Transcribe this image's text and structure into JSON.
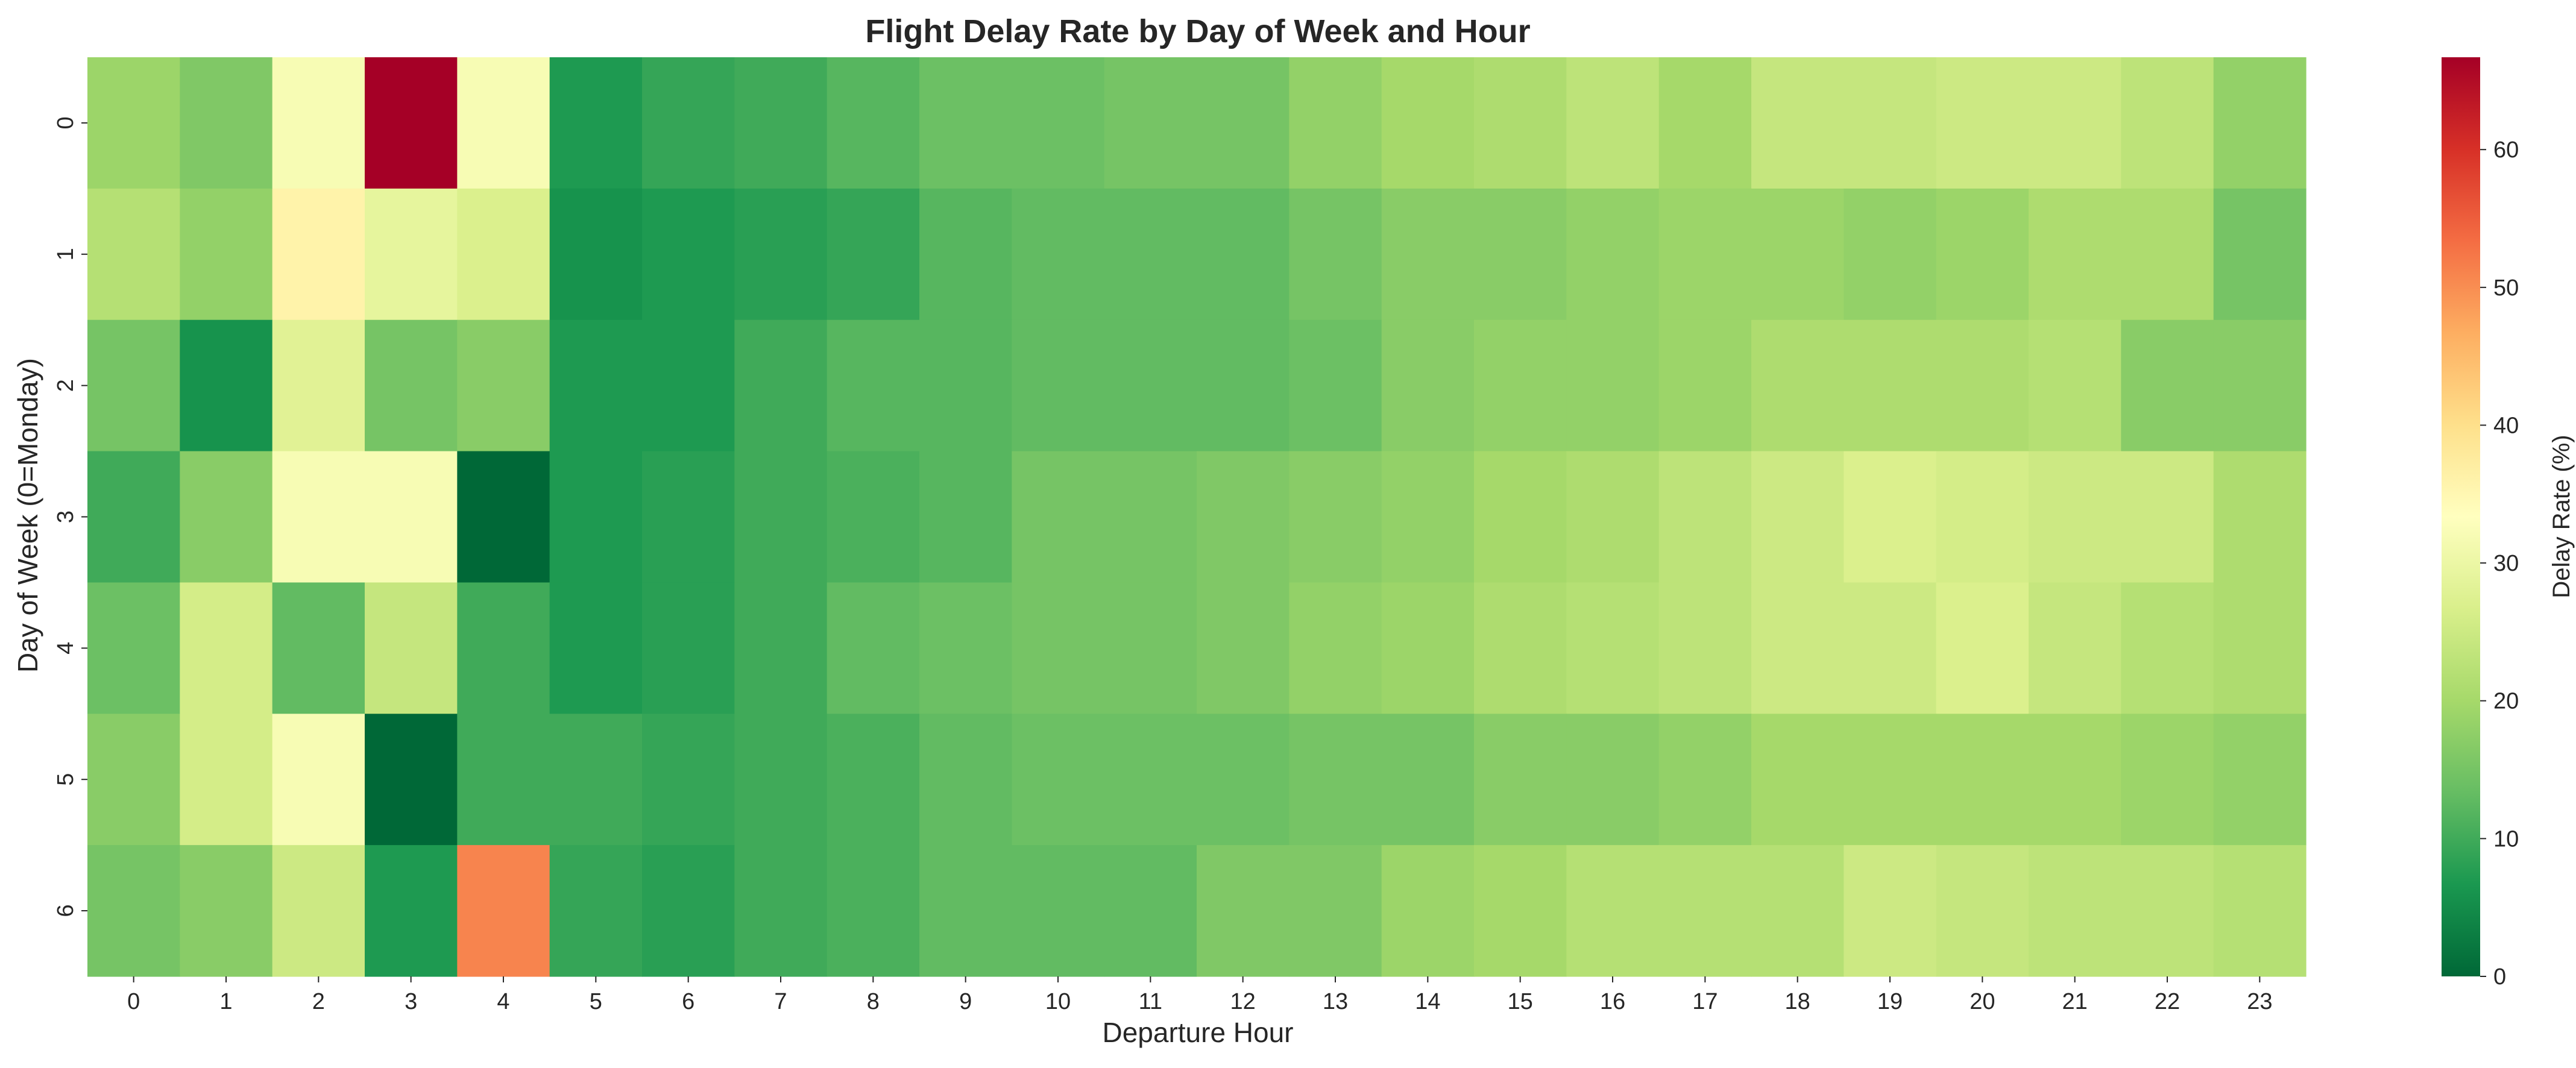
{
  "chart_data": {
    "type": "heatmap",
    "title": "Flight Delay Rate by Day of Week and Hour",
    "xlabel": "Departure Hour",
    "ylabel": "Day of Week (0=Monday)",
    "x_categories": [
      "0",
      "1",
      "2",
      "3",
      "4",
      "5",
      "6",
      "7",
      "8",
      "9",
      "10",
      "11",
      "12",
      "13",
      "14",
      "15",
      "16",
      "17",
      "18",
      "19",
      "20",
      "21",
      "22",
      "23"
    ],
    "y_categories": [
      "0",
      "1",
      "2",
      "3",
      "4",
      "5",
      "6"
    ],
    "values": [
      [
        19,
        16,
        32,
        67,
        32,
        7,
        9,
        10,
        12,
        14,
        14,
        15,
        15,
        18,
        20,
        21,
        23,
        20,
        24,
        24,
        25,
        25,
        23,
        18
      ],
      [
        22,
        18,
        36,
        29,
        27,
        6,
        7,
        8,
        9,
        12,
        13,
        13,
        13,
        15,
        17,
        17,
        18,
        19,
        19,
        18,
        19,
        21,
        21,
        15
      ],
      [
        15,
        6,
        28,
        15,
        17,
        7,
        7,
        10,
        12,
        12,
        13,
        13,
        13,
        14,
        17,
        18,
        18,
        19,
        21,
        21,
        21,
        22,
        17,
        17
      ],
      [
        10,
        17,
        32,
        32,
        0,
        7,
        8,
        10,
        11,
        12,
        15,
        15,
        16,
        17,
        18,
        20,
        21,
        23,
        25,
        27,
        26,
        25,
        25,
        21
      ],
      [
        14,
        26,
        13,
        24,
        10,
        7,
        8,
        10,
        13,
        14,
        15,
        15,
        16,
        18,
        19,
        21,
        22,
        23,
        25,
        25,
        27,
        24,
        22,
        21
      ],
      [
        17,
        26,
        32,
        0,
        10,
        10,
        9,
        10,
        11,
        13,
        14,
        14,
        14,
        15,
        15,
        17,
        17,
        18,
        20,
        20,
        20,
        20,
        19,
        18
      ],
      [
        15,
        17,
        25,
        7,
        51,
        9,
        8,
        10,
        11,
        13,
        13,
        13,
        16,
        16,
        19,
        20,
        22,
        22,
        22,
        25,
        24,
        23,
        23,
        22
      ]
    ],
    "colorbar": {
      "label": "Delay Rate (%)",
      "min": 0,
      "max": 66.7,
      "ticks": [
        "0",
        "10",
        "20",
        "30",
        "40",
        "50",
        "60"
      ],
      "colormap": "RdYlGn_r"
    },
    "grid": false
  }
}
